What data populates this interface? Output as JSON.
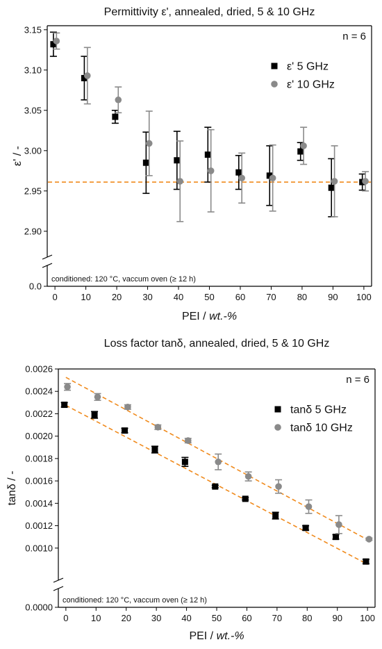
{
  "chart_data": [
    {
      "type": "scatter",
      "title": "Permittivity ε', annealed, dried, 5 & 10 GHz",
      "xlabel_main": "PEI  / ",
      "xlabel_unit": "wt.-%",
      "ylabel": "ε' / -",
      "xlim": [
        -2.5,
        102.5
      ],
      "ylim": [
        2.88,
        3.155
      ],
      "axis_break": true,
      "break_value": "0.0",
      "x_ticks": [
        0,
        10,
        20,
        30,
        40,
        50,
        60,
        70,
        80,
        90,
        100
      ],
      "y_ticks": [
        2.9,
        2.95,
        3.0,
        3.05,
        3.1,
        3.15
      ],
      "y_tick_labels": [
        "2.90",
        "2.95",
        "3.00",
        "3.05",
        "3.10",
        "3.15"
      ],
      "annotation": "n = 6",
      "note": "conditioned: 120 °C, vaccum oven (≥ 12 h)",
      "legend_position": "top-right",
      "reference_line": {
        "y": 2.961,
        "color": "#f08a1c",
        "style": "dashed"
      },
      "series": [
        {
          "name": "ε'   5 GHz",
          "marker": "square",
          "color": "#000000",
          "x": [
            0,
            10,
            20,
            30,
            40,
            50,
            60,
            70,
            80,
            90,
            100
          ],
          "y": [
            3.132,
            3.09,
            3.042,
            2.985,
            2.988,
            2.995,
            2.973,
            2.969,
            2.999,
            2.954,
            2.961
          ],
          "err": [
            0.015,
            0.027,
            0.008,
            0.038,
            0.036,
            0.034,
            0.021,
            0.037,
            0.011,
            0.036,
            0.01
          ]
        },
        {
          "name": "ε' 10 GHz",
          "marker": "circle",
          "color": "#8a8a8a",
          "x": [
            0,
            10,
            20,
            30,
            40,
            50,
            60,
            70,
            80,
            90,
            100
          ],
          "y": [
            3.136,
            3.093,
            3.063,
            3.009,
            2.962,
            2.975,
            2.966,
            2.966,
            3.006,
            2.962,
            2.962
          ],
          "err": [
            0.01,
            0.035,
            0.016,
            0.04,
            0.05,
            0.051,
            0.031,
            0.041,
            0.023,
            0.044,
            0.012
          ]
        }
      ]
    },
    {
      "type": "scatter",
      "title": "Loss factor tanδ, annealed, dried, 5 & 10 GHz",
      "xlabel_main": "PEI  / ",
      "xlabel_unit": "wt.-%",
      "ylabel": "tanδ / -",
      "xlim": [
        -2.5,
        102.5
      ],
      "ylim": [
        0.0008,
        0.0026
      ],
      "axis_break": true,
      "break_value": "0.0000",
      "x_ticks": [
        0,
        10,
        20,
        30,
        40,
        50,
        60,
        70,
        80,
        90,
        100
      ],
      "y_ticks": [
        0.001,
        0.0012,
        0.0014,
        0.0016,
        0.0018,
        0.002,
        0.0022,
        0.0024,
        0.0026
      ],
      "y_tick_labels": [
        "0.0010",
        "0.0012",
        "0.0014",
        "0.0016",
        "0.0018",
        "0.0020",
        "0.0022",
        "0.0024",
        "0.0026"
      ],
      "annotation": "n = 6",
      "note": "conditioned: 120 °C, vaccum oven (≥ 12 h)",
      "legend_position": "top-right",
      "fit_lines": [
        {
          "x": [
            0,
            100
          ],
          "y": [
            0.002525,
            0.001075
          ],
          "color": "#f08a1c",
          "style": "dashed"
        },
        {
          "x": [
            0,
            100
          ],
          "y": [
            0.002275,
            0.000855
          ],
          "color": "#f08a1c",
          "style": "dashed"
        }
      ],
      "series": [
        {
          "name": "tanδ   5 GHz",
          "marker": "square",
          "color": "#000000",
          "x": [
            0,
            10,
            20,
            30,
            40,
            50,
            60,
            70,
            80,
            90,
            100
          ],
          "y": [
            0.00228,
            0.00219,
            0.00205,
            0.00188,
            0.00177,
            0.00155,
            0.00144,
            0.00129,
            0.00118,
            0.0011,
            0.00088
          ],
          "err": [
            2e-05,
            3e-05,
            2e-05,
            3e-05,
            4e-05,
            1e-05,
            1e-05,
            3e-05,
            2e-05,
            2e-05,
            2e-05
          ]
        },
        {
          "name": "tanδ 10 GHz",
          "marker": "circle",
          "color": "#8a8a8a",
          "x": [
            0,
            10,
            20,
            30,
            40,
            50,
            60,
            70,
            80,
            90,
            100
          ],
          "y": [
            0.00244,
            0.00235,
            0.00226,
            0.00208,
            0.00196,
            0.00177,
            0.00164,
            0.00155,
            0.00137,
            0.00121,
            0.00108
          ],
          "err": [
            3e-05,
            3e-05,
            2e-05,
            2e-05,
            2e-05,
            7e-05,
            4e-05,
            6e-05,
            6e-05,
            8e-05,
            1e-05
          ]
        }
      ]
    }
  ]
}
